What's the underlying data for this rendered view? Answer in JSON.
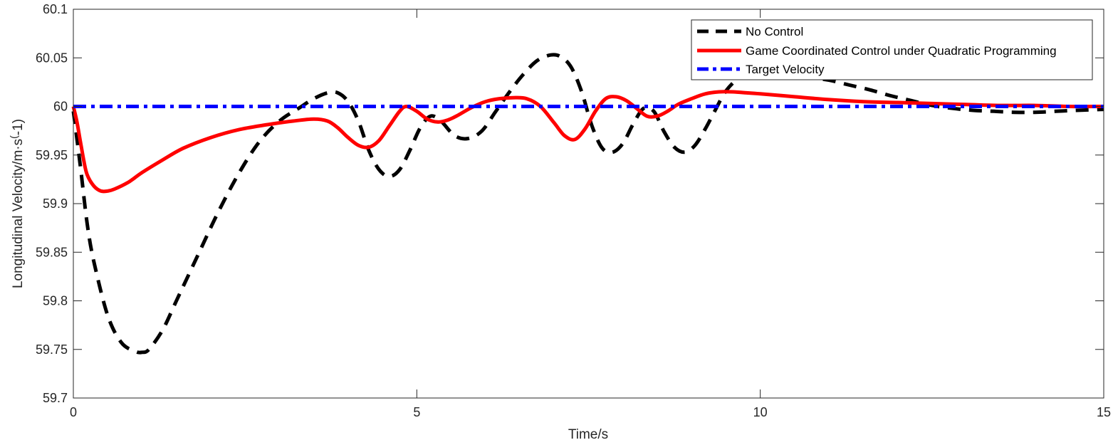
{
  "chart_data": {
    "type": "line",
    "title": "",
    "xlabel": "Time/s",
    "ylabel": "Longitudinal Velocity/m·s^(-1)",
    "ylabel_base": "Longitudinal Velocity/m·s",
    "ylabel_sup": "(",
    "ylabel_tail": "-1)",
    "xlim": [
      0,
      15
    ],
    "ylim": [
      59.7,
      60.1
    ],
    "xticks": [
      0,
      5,
      10,
      15
    ],
    "xtick_labels": [
      "0",
      "5",
      "10",
      "15"
    ],
    "yticks": [
      59.7,
      59.75,
      59.8,
      59.85,
      59.9,
      59.95,
      60,
      60.05,
      60.1
    ],
    "ytick_labels": [
      "59.7",
      "59.75",
      "59.8",
      "59.85",
      "59.9",
      "59.95",
      "60",
      "60.05",
      "60.1"
    ],
    "grid": false,
    "legend_position": "top-right",
    "series": [
      {
        "name": "No Control",
        "color": "#000000",
        "style": "dashed",
        "x": [
          0,
          0.1,
          0.2,
          0.3,
          0.5,
          0.7,
          0.9,
          1.0,
          1.1,
          1.3,
          1.5,
          1.8,
          2.1,
          2.4,
          2.7,
          3.0,
          3.3,
          3.5,
          3.7,
          3.85,
          4.0,
          4.15,
          4.3,
          4.45,
          4.6,
          4.75,
          4.9,
          5.05,
          5.2,
          5.35,
          5.55,
          5.75,
          5.95,
          6.15,
          6.35,
          6.55,
          6.75,
          6.95,
          7.1,
          7.25,
          7.4,
          7.55,
          7.7,
          7.85,
          8.0,
          8.15,
          8.3,
          8.45,
          8.6,
          8.75,
          8.9,
          9.05,
          9.2,
          9.35,
          9.5,
          9.7,
          9.9,
          10.1,
          10.4,
          10.7,
          11.0,
          11.3,
          11.6,
          11.9,
          12.2,
          12.5,
          12.8,
          13.1,
          13.4,
          13.7,
          14.0,
          14.3,
          14.6,
          15.0
        ],
        "y": [
          59.995,
          59.94,
          59.88,
          59.84,
          59.785,
          59.757,
          59.748,
          59.747,
          59.75,
          59.77,
          59.8,
          59.845,
          59.89,
          59.93,
          59.963,
          59.985,
          59.999,
          60.008,
          60.014,
          60.014,
          60.005,
          59.985,
          59.955,
          59.935,
          59.928,
          59.935,
          59.955,
          59.978,
          59.99,
          59.985,
          59.97,
          59.967,
          59.975,
          59.995,
          60.015,
          60.033,
          60.047,
          60.053,
          60.051,
          60.04,
          60.015,
          59.98,
          59.957,
          59.953,
          59.962,
          59.982,
          59.998,
          59.995,
          59.974,
          59.958,
          59.953,
          59.96,
          59.977,
          59.997,
          60.016,
          60.03,
          60.035,
          60.035,
          60.033,
          60.03,
          60.027,
          60.022,
          60.017,
          60.011,
          60.006,
          60.001,
          59.998,
          59.996,
          59.995,
          59.994,
          59.994,
          59.995,
          59.996,
          59.997
        ]
      },
      {
        "name": "Game Coordinated Control under Quadratic Programming",
        "color": "#ff0000",
        "style": "solid",
        "x": [
          0,
          0.05,
          0.1,
          0.15,
          0.2,
          0.3,
          0.4,
          0.5,
          0.6,
          0.8,
          1.0,
          1.3,
          1.6,
          2.0,
          2.4,
          2.8,
          3.2,
          3.5,
          3.7,
          3.85,
          4.0,
          4.15,
          4.3,
          4.45,
          4.6,
          4.75,
          4.85,
          5.0,
          5.15,
          5.3,
          5.45,
          5.6,
          5.8,
          6.0,
          6.2,
          6.4,
          6.6,
          6.8,
          7.0,
          7.15,
          7.3,
          7.45,
          7.6,
          7.75,
          7.9,
          8.05,
          8.2,
          8.35,
          8.5,
          8.65,
          8.8,
          9.0,
          9.2,
          9.4,
          9.6,
          9.8,
          10.0,
          10.5,
          11.0,
          11.5,
          12.0,
          12.5,
          13.0,
          13.5,
          14.0,
          14.5,
          15.0
        ],
        "y": [
          60.0,
          59.985,
          59.965,
          59.945,
          59.93,
          59.918,
          59.913,
          59.913,
          59.915,
          59.922,
          59.932,
          59.945,
          59.957,
          59.968,
          59.976,
          59.981,
          59.985,
          59.987,
          59.985,
          59.978,
          59.968,
          59.96,
          59.958,
          59.965,
          59.98,
          59.995,
          60.0,
          59.995,
          59.987,
          59.984,
          59.986,
          59.991,
          59.999,
          60.005,
          60.008,
          60.009,
          60.008,
          60.0,
          59.983,
          59.97,
          59.966,
          59.977,
          59.995,
          60.008,
          60.01,
          60.006,
          59.998,
          59.99,
          59.99,
          59.995,
          60.002,
          60.008,
          60.013,
          60.015,
          60.015,
          60.014,
          60.013,
          60.01,
          60.007,
          60.005,
          60.004,
          60.003,
          60.002,
          60.001,
          60.001,
          60.0,
          60.0
        ]
      },
      {
        "name": "Target Velocity",
        "color": "#0000ff",
        "style": "dashdot",
        "x": [
          0,
          15
        ],
        "y": [
          60,
          60
        ]
      }
    ]
  }
}
